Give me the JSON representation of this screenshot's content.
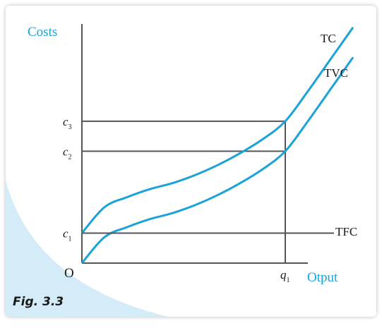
{
  "figure": {
    "caption": "Fig. 3.3",
    "wedge_color": "#d4ebf8"
  },
  "chart_data": {
    "type": "line",
    "title": "",
    "xlabel": "Otput",
    "ylabel": "Costs",
    "origin_label": "O",
    "xlim": [
      0,
      1.25
    ],
    "ylim": [
      0,
      1.25
    ],
    "grid": false,
    "colors": {
      "axis": "#555555",
      "curve": "#1ba3d9",
      "label": "#1ba3d9",
      "text": "#1a1a1a",
      "guide": "#555555"
    },
    "series": [
      {
        "name": "TC",
        "x": [
          0,
          0.1,
          0.2,
          0.3,
          0.4,
          0.5,
          0.6,
          0.7,
          0.8,
          0.9,
          1.0,
          1.1,
          1.2
        ],
        "y": [
          0.15,
          0.28,
          0.33,
          0.37,
          0.4,
          0.44,
          0.49,
          0.55,
          0.62,
          0.71,
          0.86,
          1.02,
          1.18
        ]
      },
      {
        "name": "TVC",
        "x": [
          0,
          0.1,
          0.2,
          0.3,
          0.4,
          0.5,
          0.6,
          0.7,
          0.8,
          0.9,
          1.0,
          1.1,
          1.2
        ],
        "y": [
          0,
          0.13,
          0.18,
          0.22,
          0.25,
          0.29,
          0.34,
          0.4,
          0.47,
          0.56,
          0.71,
          0.87,
          1.03
        ]
      },
      {
        "name": "TFC",
        "x": [
          0,
          1.25
        ],
        "y": [
          0.15,
          0.15
        ]
      }
    ],
    "y_ticks": [
      {
        "main": "c",
        "sub": "1",
        "value": 0.15
      },
      {
        "main": "c",
        "sub": "2",
        "value": 0.56
      },
      {
        "main": "c",
        "sub": "3",
        "value": 0.71
      }
    ],
    "x_ticks": [
      {
        "main": "q",
        "sub": "1",
        "value": 0.9
      }
    ]
  }
}
